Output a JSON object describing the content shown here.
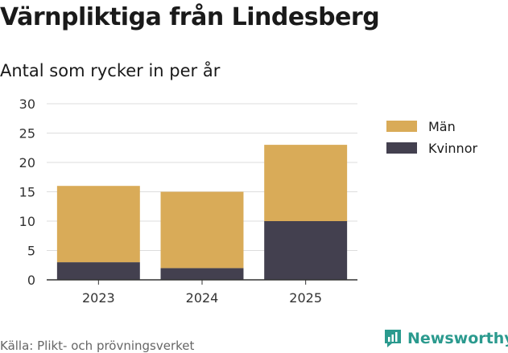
{
  "header": {
    "title": "Värnpliktiga från Lindesberg",
    "subtitle": "Antal som rycker in per år"
  },
  "footer": {
    "source": "Källa: Plikt- och prövningsverket",
    "brand": "Newsworthy"
  },
  "colors": {
    "man": "#d9ab58",
    "kvinnor": "#43404f",
    "grid": "#dddddd",
    "axis": "#333333",
    "brand": "#2b9a8e"
  },
  "icons": {
    "brand_logo": "newsworthy-logo-icon"
  },
  "chart_data": {
    "type": "bar",
    "stacked": true,
    "title": "Värnpliktiga från Lindesberg",
    "subtitle": "Antal som rycker in per år",
    "categories": [
      "2023",
      "2024",
      "2025"
    ],
    "series": [
      {
        "name": "Kvinnor",
        "values": [
          3,
          2,
          10
        ]
      },
      {
        "name": "Män",
        "values": [
          13,
          13,
          13
        ]
      }
    ],
    "legend": [
      "Män",
      "Kvinnor"
    ],
    "yticks": [
      "0",
      "5",
      "10",
      "15",
      "20",
      "25",
      "30"
    ],
    "ylim": [
      0,
      30
    ],
    "legend_position": "right",
    "grid": true
  }
}
